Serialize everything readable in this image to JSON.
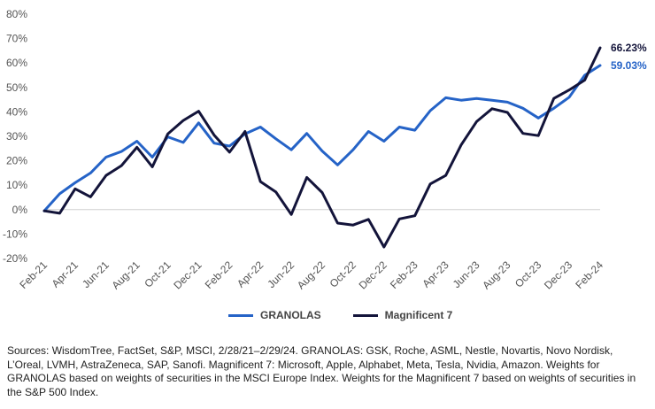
{
  "chart_data": {
    "type": "line",
    "x": [
      "Feb-21",
      "Mar-21",
      "Apr-21",
      "May-21",
      "Jun-21",
      "Jul-21",
      "Aug-21",
      "Sep-21",
      "Oct-21",
      "Nov-21",
      "Dec-21",
      "Jan-22",
      "Feb-22",
      "Mar-22",
      "Apr-22",
      "May-22",
      "Jun-22",
      "Jul-22",
      "Aug-22",
      "Sep-22",
      "Oct-22",
      "Nov-22",
      "Dec-22",
      "Jan-23",
      "Feb-23",
      "Mar-23",
      "Apr-23",
      "May-23",
      "Jun-23",
      "Jul-23",
      "Aug-23",
      "Sep-23",
      "Oct-23",
      "Nov-23",
      "Dec-23",
      "Jan-24",
      "Feb-24"
    ],
    "x_tick_labels": [
      "Feb-21",
      "Apr-21",
      "Jun-21",
      "Aug-21",
      "Oct-21",
      "Dec-21",
      "Feb-22",
      "Apr-22",
      "Jun-22",
      "Aug-22",
      "Oct-22",
      "Dec-22",
      "Feb-23",
      "Apr-23",
      "Jun-23",
      "Aug-23",
      "Oct-23",
      "Dec-23",
      "Feb-24"
    ],
    "y_tick_labels": [
      "80%",
      "70%",
      "60%",
      "50%",
      "40%",
      "30%",
      "20%",
      "10%",
      "0%",
      "-10%",
      "-20%"
    ],
    "ylim": [
      -20,
      80
    ],
    "grid": false,
    "legend_position": "bottom",
    "series": [
      {
        "name": "GRANOLAS",
        "color": "#2563c7",
        "end_label": "59.03%",
        "values": [
          -0.5,
          6.5,
          11.0,
          15.0,
          21.5,
          23.8,
          28.0,
          21.5,
          29.8,
          27.5,
          35.5,
          27.2,
          26.0,
          31.0,
          33.8,
          29.0,
          24.5,
          31.2,
          24.0,
          18.3,
          24.5,
          32.0,
          28.0,
          33.8,
          32.5,
          40.5,
          45.8,
          44.8,
          45.5,
          44.8,
          44.0,
          41.5,
          37.5,
          41.5,
          46.0,
          55.0,
          59.03
        ]
      },
      {
        "name": "Magnificent 7",
        "color": "#13143a",
        "end_label": "66.23%",
        "values": [
          -0.5,
          -1.5,
          8.5,
          5.2,
          14.0,
          18.0,
          25.5,
          17.5,
          31.0,
          36.5,
          40.3,
          30.5,
          23.5,
          32.0,
          11.5,
          7.2,
          -2.0,
          13.2,
          7.0,
          -5.5,
          -6.3,
          -4.0,
          -15.3,
          -3.8,
          -2.5,
          10.5,
          14.0,
          26.5,
          36.0,
          41.3,
          39.8,
          31.2,
          30.3,
          45.5,
          49.0,
          53.0,
          66.23
        ]
      }
    ]
  },
  "source_text": "Sources: WisdomTree, FactSet, S&P, MSCI, 2/28/21–2/29/24. GRANOLAS: GSK, Roche, ASML, Nestle, Novartis, Novo Nordisk, L’Oreal, LVMH, AstraZeneca, SAP, Sanofi. Magnificent 7: Microsoft, Apple, Alphabet, Meta, Tesla, Nvidia, Amazon. Weights for GRANOLAS based on weights of securities in the MSCI Europe Index. Weights for the Magnificent 7 based on weights of securities in the S&P 500 Index."
}
